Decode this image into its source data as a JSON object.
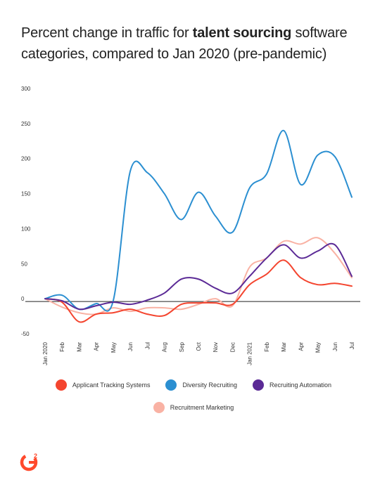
{
  "title": {
    "prefix": "Percent change in traffic for ",
    "bold": "talent sourcing",
    "suffix": " software categories, compared to Jan 2020 (pre-pandemic)"
  },
  "chart_data": {
    "type": "line",
    "title": "Percent change in traffic for talent sourcing software categories, compared to Jan 2020 (pre-pandemic)",
    "xlabel": "",
    "ylabel": "",
    "ylim": [
      -50,
      300
    ],
    "yticks": [
      300,
      250,
      200,
      150,
      100,
      50,
      0,
      -50
    ],
    "grid": false,
    "legend_position": "bottom",
    "categories": [
      "Jan 2020",
      "Feb",
      "Mar",
      "Apr",
      "May",
      "Jun",
      "Jul",
      "Aug",
      "Sep",
      "Oct",
      "Nov",
      "Dec",
      "Jan 2021",
      "Feb",
      "Mar",
      "Apr",
      "May",
      "Jun",
      "Jul"
    ],
    "series": [
      {
        "name": "Applicant Tracking Systems",
        "color": "#f4452f",
        "values": [
          0,
          -5,
          -33,
          -22,
          -20,
          -15,
          -22,
          -24,
          -8,
          -6,
          -6,
          -8,
          20,
          35,
          55,
          30,
          20,
          22,
          18
        ]
      },
      {
        "name": "Diversity Recruiting",
        "color": "#2b8fd1",
        "values": [
          0,
          5,
          -15,
          -7,
          -3,
          182,
          180,
          150,
          113,
          152,
          118,
          95,
          158,
          178,
          240,
          163,
          205,
          203,
          145
        ]
      },
      {
        "name": "Recruiting Automation",
        "color": "#5b2a96",
        "values": [
          0,
          -3,
          -15,
          -10,
          -5,
          -8,
          -2,
          8,
          28,
          28,
          15,
          8,
          32,
          58,
          77,
          58,
          68,
          77,
          32
        ]
      },
      {
        "name": "Recruitment Marketing",
        "color": "#f9b2a4",
        "values": [
          0,
          -12,
          -20,
          -22,
          -13,
          -18,
          -13,
          -13,
          -15,
          -8,
          0,
          -10,
          45,
          58,
          82,
          78,
          87,
          65,
          30
        ]
      }
    ]
  },
  "legend": {
    "items": [
      {
        "label": "Applicant Tracking Systems",
        "color": "#f4452f"
      },
      {
        "label": "Diversity Recruiting",
        "color": "#2b8fd1"
      },
      {
        "label": "Recruiting Automation",
        "color": "#5b2a96"
      },
      {
        "label": "Recruitment Marketing",
        "color": "#f9b2a4"
      }
    ]
  },
  "brand": {
    "logo_text": "G2",
    "color": "#ff492c"
  }
}
